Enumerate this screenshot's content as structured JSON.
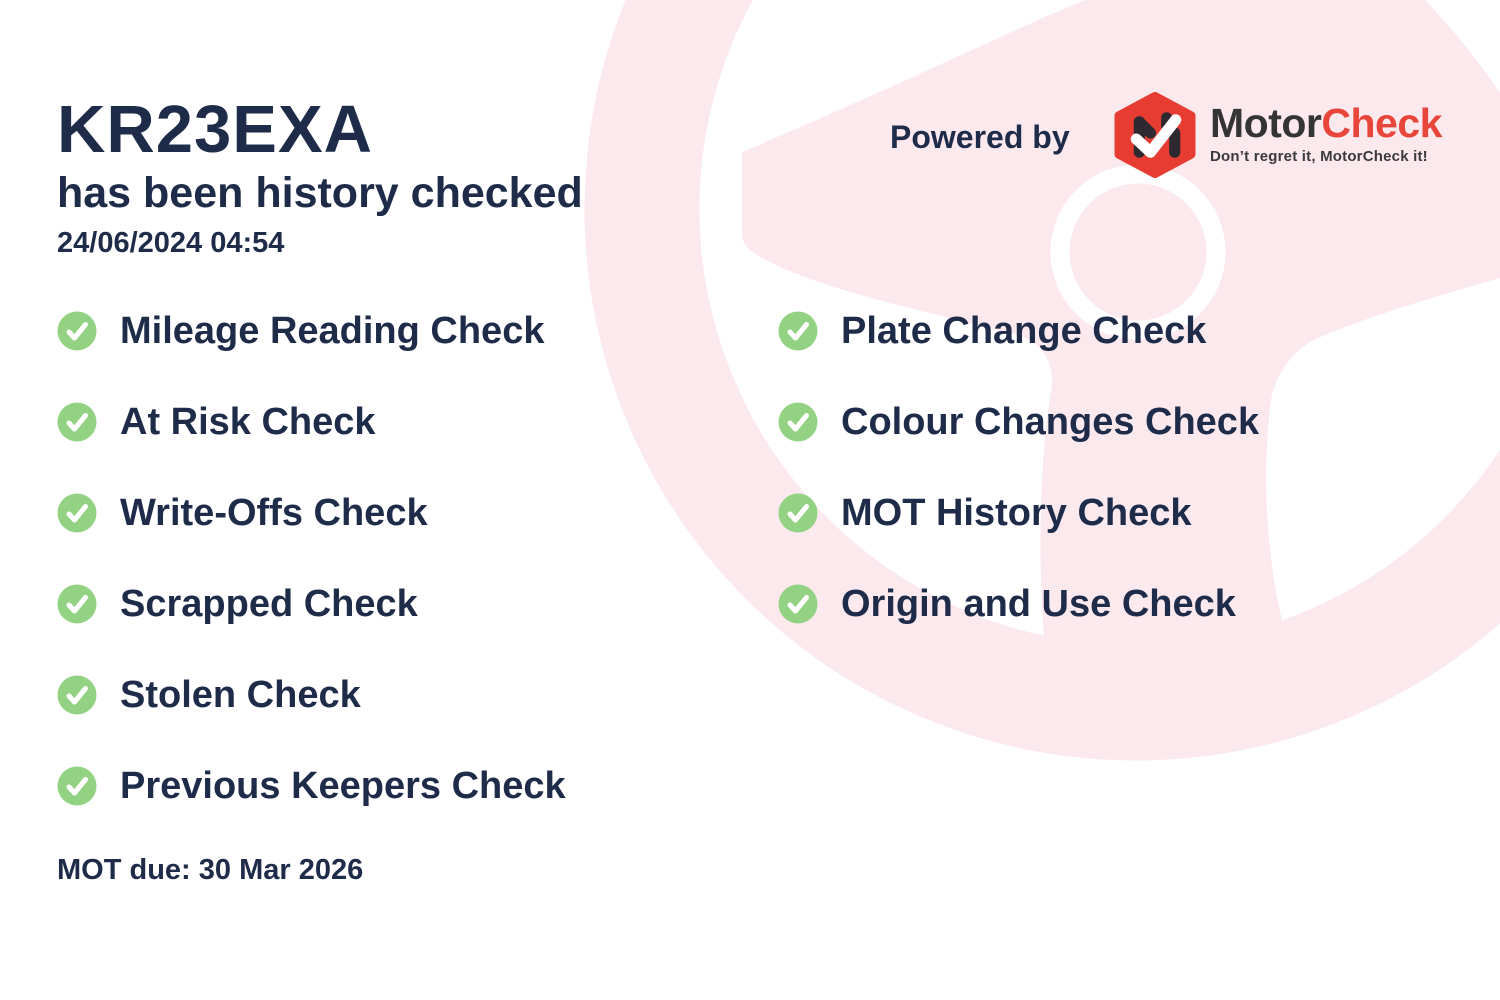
{
  "header": {
    "registration": "KR23EXA",
    "subtitle": "has been history checked",
    "timestamp": "24/06/2024 04:54"
  },
  "powered_by": {
    "label": "Powered by",
    "brand_motor": "Motor",
    "brand_check": "Check",
    "tagline": "Don’t regret it, MotorCheck it!"
  },
  "checks_left": [
    "Mileage Reading Check",
    "At Risk Check",
    "Write-Offs Check",
    "Scrapped Check",
    "Stolen Check",
    "Previous Keepers Check"
  ],
  "checks_right": [
    "Plate Change Check",
    "Colour Changes Check",
    "MOT History Check",
    "Origin and Use Check"
  ],
  "footer": {
    "mot_due": "MOT due: 30 Mar 2026"
  },
  "colors": {
    "navy": "#1e2b49",
    "pink_watermark": "#fbe9ee",
    "green_check": "#93d283",
    "brand_red": "#e8453b",
    "logo_red": "#e73c31",
    "brand_dark": "#343434"
  },
  "icons": {
    "list_bullet": "check-circle-icon",
    "logo_mark": "motorcheck-hexagon-logo"
  }
}
